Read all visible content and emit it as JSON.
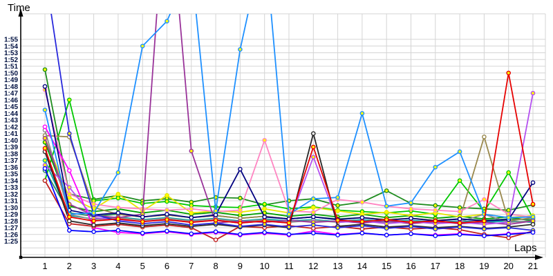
{
  "chart_data": {
    "type": "line",
    "title": "",
    "ylabel": "Time",
    "xlabel": "Laps",
    "x_ticks": [
      "1",
      "2",
      "3",
      "4",
      "5",
      "6",
      "7",
      "8",
      "9",
      "10",
      "11",
      "12",
      "13",
      "14",
      "15",
      "16",
      "17",
      "18",
      "19",
      "20",
      "21"
    ],
    "y_ticks": [
      "1:55",
      "1:54",
      "1:53",
      "1:52",
      "1:51",
      "1:50",
      "1:49",
      "1:48",
      "1:47",
      "1:46",
      "1:45",
      "1:44",
      "1:43",
      "1:42",
      "1:41",
      "1:40",
      "1:39",
      "1:38",
      "1:37",
      "1:36",
      "1:35",
      "1:34",
      "1:33",
      "1:32",
      "1:31",
      "1:30",
      "1:29",
      "1:28",
      "1:27",
      "1:26",
      "1:25"
    ],
    "y_axis": {
      "labeled_min": "1:25",
      "labeled_max": "1:55",
      "units": "minutes:seconds",
      "values_encoded_as": "seconds"
    },
    "x_axis": {
      "min": 1,
      "max": 21
    },
    "grid": true,
    "legend_position": "none",
    "colors": {
      "grid": "#d4d4d4",
      "axis": "#000000",
      "marker_fill_yellow": "#ffff00",
      "marker_fill_white": "#ffffff"
    },
    "series": [
      {
        "name": "line-darkgreen",
        "color": "#1E8C1E",
        "marker_fill": "#ffff00",
        "values": [
          110.5,
          92,
          91.2,
          91.8,
          91,
          91.3,
          90.8,
          91.5,
          91.4,
          90.4,
          91,
          91.3,
          90.3,
          90.8,
          92.5,
          90.6,
          90.3,
          90,
          89.8,
          89.6,
          90.4
        ]
      },
      {
        "name": "line-green",
        "color": "#00C800",
        "marker_fill": "#ffff00",
        "values": [
          94,
          106,
          91,
          91.4,
          90.6,
          90.9,
          90.3,
          90.1,
          90,
          90.5,
          89.8,
          90.1,
          89.6,
          89.4,
          89.2,
          89.5,
          89,
          94,
          89.4,
          95.2,
          88.4
        ]
      },
      {
        "name": "line-mediumgreen",
        "color": "#00A000",
        "marker_fill": "#ffff00",
        "values": [
          99.7,
          90.2,
          89.4,
          89.8,
          89.2,
          89.6,
          89,
          89.3,
          88.8,
          89.2,
          88.7,
          89,
          88.6,
          89,
          88.5,
          88.8,
          88.4,
          88.7,
          88.3,
          88.6,
          88
        ]
      },
      {
        "name": "line-seagreen",
        "color": "#2E8B57",
        "marker_fill": "#ffffff",
        "values": [
          95.5,
          89.2,
          88.7,
          89,
          88.6,
          88.9,
          88.5,
          88.8,
          88.4,
          88.7,
          88.3,
          88.6,
          88.3,
          88.5,
          88.2,
          88.4,
          88.1,
          88.3,
          88.1,
          88.3,
          88.2
        ]
      },
      {
        "name": "line-teal",
        "color": "#00A8A8",
        "marker_fill": "#ffff00",
        "values": [
          97,
          88.8,
          88.3,
          88.6,
          88.2,
          88.5,
          88.1,
          88.4,
          88,
          88.3,
          88,
          88.2,
          87.9,
          88.2,
          87.9,
          88.1,
          87.8,
          88,
          87.8,
          88,
          87.8
        ]
      },
      {
        "name": "line-khaki",
        "color": "#99884D",
        "marker_fill": "#ffffff",
        "values": [
          100.7,
          100.5,
          90,
          89,
          88.6,
          88.9,
          88.5,
          88.8,
          88.4,
          88.7,
          88.3,
          88.6,
          88.2,
          88.5,
          88.2,
          88.4,
          88.1,
          88.3,
          100.5,
          88,
          88.5
        ]
      },
      {
        "name": "line-yellow",
        "color": "#E6E600",
        "marker_fill": "#ffff00",
        "values": [
          100.3,
          91.5,
          89.8,
          92,
          89.5,
          91.8,
          89.2,
          89.5,
          89.3,
          89.8,
          89.2,
          90,
          89.5,
          89,
          89.3,
          88.8,
          89.2,
          88.6,
          89,
          88.5,
          88.8
        ]
      },
      {
        "name": "line-gray",
        "color": "#8C8C8C",
        "marker_fill": "#ffffff",
        "values": [
          101.5,
          89,
          88.2,
          88.5,
          88.1,
          88.4,
          88,
          88.3,
          87.9,
          88.2,
          87.8,
          88.1,
          87.8,
          88,
          87.7,
          88,
          87.6,
          87.9,
          89,
          87.8,
          88
        ]
      },
      {
        "name": "line-pink",
        "color": "#FF85C2",
        "marker_fill": "#ffff00",
        "values": [
          107.5,
          92,
          90.5,
          90,
          89.8,
          89.6,
          89.8,
          89.4,
          89.6,
          100,
          89.5,
          89.3,
          91.2,
          90.8,
          90.2,
          89.8,
          89.6,
          89.4,
          91.2,
          89,
          88.6
        ]
      },
      {
        "name": "line-purple",
        "color": "#993399",
        "marker_fill": "#ffff00",
        "values": [
          100.3,
          90.5,
          88.8,
          88.5,
          89,
          140,
          98.4,
          87.7,
          88,
          87.8,
          88.1,
          87.8,
          88,
          87.7,
          88,
          87.6,
          87.9,
          87.6,
          87.8,
          87.5,
          88
        ]
      },
      {
        "name": "line-magenta",
        "color": "#FF00FF",
        "marker_fill": "#ffffff",
        "values": [
          102,
          95.5,
          87,
          86.3,
          86.1,
          86.4,
          86,
          86.3,
          85.9,
          86.2,
          85.9,
          86.5,
          86,
          86.2,
          85.9,
          86.1,
          85.9,
          86.1,
          85.8,
          86.1,
          86.3
        ]
      },
      {
        "name": "line-violet",
        "color": "#B450F0",
        "marker_fill": "#ffff00",
        "values": [
          96.3,
          93,
          88.5,
          88.2,
          87.9,
          88.2,
          87.8,
          88.1,
          87.7,
          88,
          87.7,
          97.5,
          87.8,
          88,
          87.6,
          87.9,
          87.6,
          87.8,
          87.5,
          87.8,
          107
        ]
      },
      {
        "name": "line-firebrick",
        "color": "#C22020",
        "marker_fill": "#ffffff",
        "values": [
          94,
          87.6,
          87.2,
          87.5,
          87.1,
          87.4,
          87,
          85.2,
          87.2,
          87,
          87.3,
          86.9,
          87.2,
          86.8,
          87.1,
          86.8,
          87,
          86.7,
          86,
          85.5,
          86.5
        ]
      },
      {
        "name": "line-black",
        "color": "#282828",
        "marker_fill": "#ffffff",
        "values": [
          98.3,
          88,
          87.4,
          87.7,
          87.3,
          87.6,
          87.2,
          87.5,
          87.1,
          87.4,
          87,
          101,
          87.2,
          87.5,
          87.1,
          87.3,
          87,
          87.2,
          86.9,
          87.1,
          87.5
        ]
      },
      {
        "name": "line-navy",
        "color": "#000080",
        "marker_fill": "#ffffff",
        "values": [
          108,
          89.6,
          88.9,
          89.2,
          88.6,
          89,
          88.5,
          88.9,
          95.7,
          88.6,
          88.3,
          88.6,
          88.2,
          88.5,
          88.1,
          88.4,
          88,
          88.3,
          88,
          88.2,
          93.7
        ]
      },
      {
        "name": "line-royalblue",
        "color": "#2828DC",
        "marker_fill": "#ffff00",
        "values": [
          125,
          101,
          89,
          88,
          87.6,
          87.9,
          87.4,
          87.7,
          87.2,
          87.5,
          87.1,
          87.4,
          87,
          87.3,
          86.9,
          87.2,
          86.8,
          87.1,
          86.8,
          87,
          86.6
        ]
      },
      {
        "name": "line-blue",
        "color": "#0000FF",
        "marker_fill": "#ffffff",
        "values": [
          95.8,
          86.6,
          86.4,
          86.6,
          86.2,
          86.5,
          86.1,
          86.4,
          86,
          86.3,
          86,
          86.2,
          85.9,
          86.2,
          85.9,
          86.1,
          85.8,
          86,
          85.8,
          86,
          86.3
        ]
      },
      {
        "name": "line-skyblue",
        "color": "#1E90FF",
        "marker_fill": "#ffff00",
        "values": [
          104.5,
          89,
          89.2,
          95.2,
          114,
          117.7,
          126,
          89.5,
          113.5,
          130,
          89,
          91.3,
          91.5,
          104,
          90.2,
          90.7,
          96,
          98.3,
          89,
          88.5,
          88.6
        ]
      },
      {
        "name": "line-red",
        "color": "#E60000",
        "marker_fill": "#ffff00",
        "values": [
          98.8,
          88.6,
          88,
          88.3,
          87.9,
          88.2,
          87.8,
          88.1,
          87.7,
          88,
          87.7,
          99,
          88.1,
          87.9,
          88.2,
          87.8,
          88,
          87.7,
          88,
          110,
          90.5
        ]
      }
    ]
  }
}
